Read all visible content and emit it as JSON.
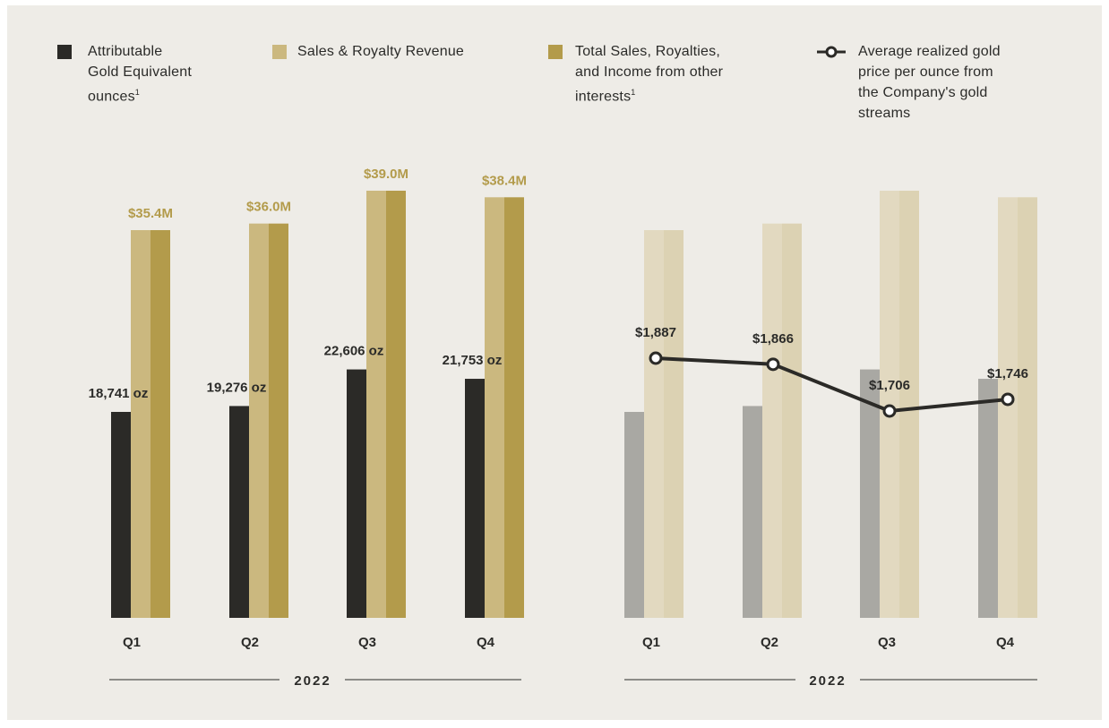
{
  "colors": {
    "background": "#eeece7",
    "ounces": "#2b2a27",
    "ounces_faded": "#a9a8a3",
    "sales": "#cbb87f",
    "sales_faded": "#e2d9c0",
    "total": "#b39b4b",
    "total_faded": "#dcd2b3",
    "price_line": "#2b2a27",
    "value_label_gold": "#b39b4b",
    "text": "#2b2b29"
  },
  "legend": [
    {
      "key": "ounces",
      "label": "Attributable Gold Equivalent ounces",
      "sup": "1",
      "icon": "square-swatch"
    },
    {
      "key": "sales",
      "label": "Sales & Royalty Revenue",
      "sup": "",
      "icon": "square-swatch"
    },
    {
      "key": "total",
      "label": "Total Sales, Royalties, and Income from other interests",
      "sup": "1",
      "icon": "square-swatch"
    },
    {
      "key": "price",
      "label": "Average realized gold price per ounce from the Company's gold streams",
      "sup": "",
      "icon": "line-circle-marker"
    }
  ],
  "chart_data": [
    {
      "type": "bar",
      "categories": [
        "Q1",
        "Q2",
        "Q3",
        "Q4"
      ],
      "period_label": "2022",
      "series": [
        {
          "name": "Attributable Gold Equivalent ounces",
          "values": [
            18741,
            19276,
            22606,
            21753
          ],
          "labels": [
            "18,741 oz",
            "19,276 oz",
            "22,606 oz",
            "21,753 oz"
          ]
        },
        {
          "name": "Sales & Royalty Revenue",
          "values": [
            35.4,
            36.0,
            39.0,
            38.4
          ]
        },
        {
          "name": "Total Sales, Royalties, and Income from other interests",
          "values": [
            35.4,
            36.0,
            39.0,
            38.4
          ],
          "labels": [
            "$35.4M",
            "$36.0M",
            "$39.0M",
            "$38.4M"
          ]
        }
      ]
    },
    {
      "type": "line",
      "categories": [
        "Q1",
        "Q2",
        "Q3",
        "Q4"
      ],
      "period_label": "2022",
      "series": [
        {
          "name": "Average realized gold price per ounce from the Company's gold streams",
          "values": [
            1887,
            1866,
            1706,
            1746
          ],
          "labels": [
            "$1,887",
            "$1,866",
            "$1,706",
            "$1,746"
          ]
        }
      ],
      "background_bars": "faded repeat of the left chart's ounces and revenue bars"
    }
  ]
}
